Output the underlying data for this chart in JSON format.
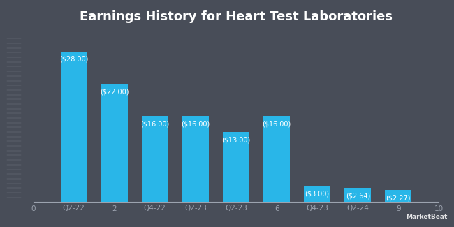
{
  "title": "Earnings History for Heart Test Laboratories",
  "background_color": "#484d58",
  "bar_color": "#29b6e8",
  "grid_color": "#555a66",
  "text_color": "#ffffff",
  "axis_label_color": "#9ca3af",
  "bar_positions": [
    1,
    2,
    3,
    4,
    5,
    6,
    7,
    8,
    9
  ],
  "bar_values": [
    28.0,
    22.0,
    16.0,
    16.0,
    13.0,
    16.0,
    3.0,
    2.64,
    2.27
  ],
  "bar_labels": [
    "($28.00)",
    "($22.00)",
    "($16.00)",
    "($16.00)",
    "($13.00)",
    "($16.00)",
    "($3.00)",
    "($2.64)",
    "($2.27)"
  ],
  "bar_width": 0.65,
  "xlim": [
    0,
    10
  ],
  "ylim": [
    0,
    32
  ],
  "xtick_positions": [
    0,
    1,
    2,
    3,
    4,
    5,
    6,
    7,
    8,
    9,
    10
  ],
  "xtick_labels": [
    "0",
    "Q2-22",
    "2",
    "Q4-22",
    "Q2-23",
    "Q2-23",
    "6",
    "Q4-23",
    "Q2-24",
    "9",
    "10"
  ],
  "title_fontsize": 13,
  "tick_fontsize": 7.5,
  "label_fontsize": 7.0,
  "stripe_color": "#9ca3af",
  "markerbeat_color": "#ffffff"
}
